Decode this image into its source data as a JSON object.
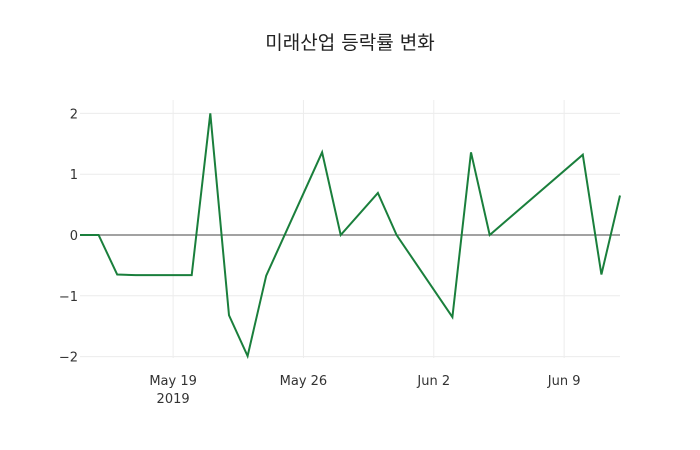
{
  "chart_data": {
    "type": "line",
    "title": "미래산업 등락률 변화",
    "xlabel": "",
    "ylabel": "",
    "x": [
      "2019-05-14",
      "2019-05-15",
      "2019-05-16",
      "2019-05-17",
      "2019-05-20",
      "2019-05-21",
      "2019-05-22",
      "2019-05-23",
      "2019-05-24",
      "2019-05-27",
      "2019-05-28",
      "2019-05-30",
      "2019-05-31",
      "2019-06-03",
      "2019-06-04",
      "2019-06-05",
      "2019-06-10",
      "2019-06-11",
      "2019-06-12"
    ],
    "series": [
      {
        "name": "등락률",
        "color": "#1a7f3c",
        "values": [
          0,
          0,
          -0.65,
          -0.66,
          -0.66,
          2.0,
          -1.32,
          -1.99,
          -0.67,
          1.36,
          0,
          0.69,
          0,
          -1.35,
          1.36,
          0,
          1.32,
          -0.65,
          0.65
        ]
      }
    ],
    "x_ticks": [
      {
        "date": "2019-05-19",
        "label": "May 19",
        "sublabel": "2019"
      },
      {
        "date": "2019-05-26",
        "label": "May 26",
        "sublabel": ""
      },
      {
        "date": "2019-06-02",
        "label": "Jun 2",
        "sublabel": ""
      },
      {
        "date": "2019-06-09",
        "label": "Jun 9",
        "sublabel": ""
      }
    ],
    "y_ticks": [
      2,
      1,
      0,
      -1,
      -2
    ],
    "y_tick_labels": [
      "2",
      "1",
      "0",
      "−1",
      "−2"
    ],
    "xlim": [
      "2019-05-14",
      "2019-06-12"
    ],
    "ylim": [
      -2.1,
      2.2
    ],
    "grid": true,
    "legend": "none"
  }
}
